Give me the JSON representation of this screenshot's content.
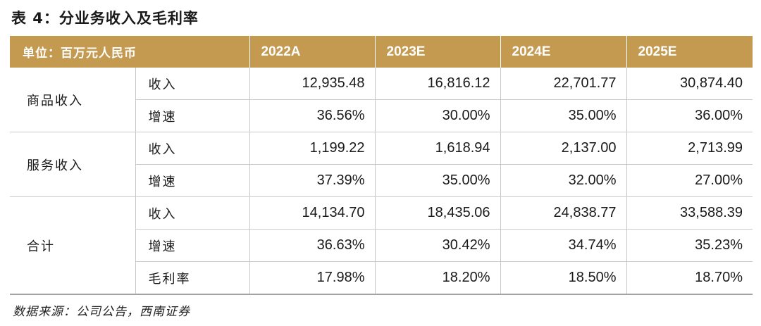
{
  "title": "表 4：分业务收入及毛利率",
  "table": {
    "unit_label": "单位：百万元人民币",
    "columns": [
      "2022A",
      "2023E",
      "2024E",
      "2025E"
    ],
    "groups": [
      {
        "name": "商品收入",
        "rows": [
          {
            "metric": "收入",
            "values": [
              "12,935.48",
              "16,816.12",
              "22,701.77",
              "30,874.40"
            ]
          },
          {
            "metric": "增速",
            "values": [
              "36.56%",
              "30.00%",
              "35.00%",
              "36.00%"
            ]
          }
        ]
      },
      {
        "name": "服务收入",
        "rows": [
          {
            "metric": "收入",
            "values": [
              "1,199.22",
              "1,618.94",
              "2,137.00",
              "2,713.99"
            ]
          },
          {
            "metric": "增速",
            "values": [
              "37.39%",
              "35.00%",
              "32.00%",
              "27.00%"
            ]
          }
        ]
      },
      {
        "name": "合计",
        "rows": [
          {
            "metric": "收入",
            "values": [
              "14,134.70",
              "18,435.06",
              "24,838.77",
              "33,588.39"
            ]
          },
          {
            "metric": "增速",
            "values": [
              "36.63%",
              "30.42%",
              "34.74%",
              "35.23%"
            ]
          },
          {
            "metric": "毛利率",
            "values": [
              "17.98%",
              "18.20%",
              "18.50%",
              "18.70%"
            ]
          }
        ]
      }
    ]
  },
  "source": "数据来源：公司公告，西南证券"
}
